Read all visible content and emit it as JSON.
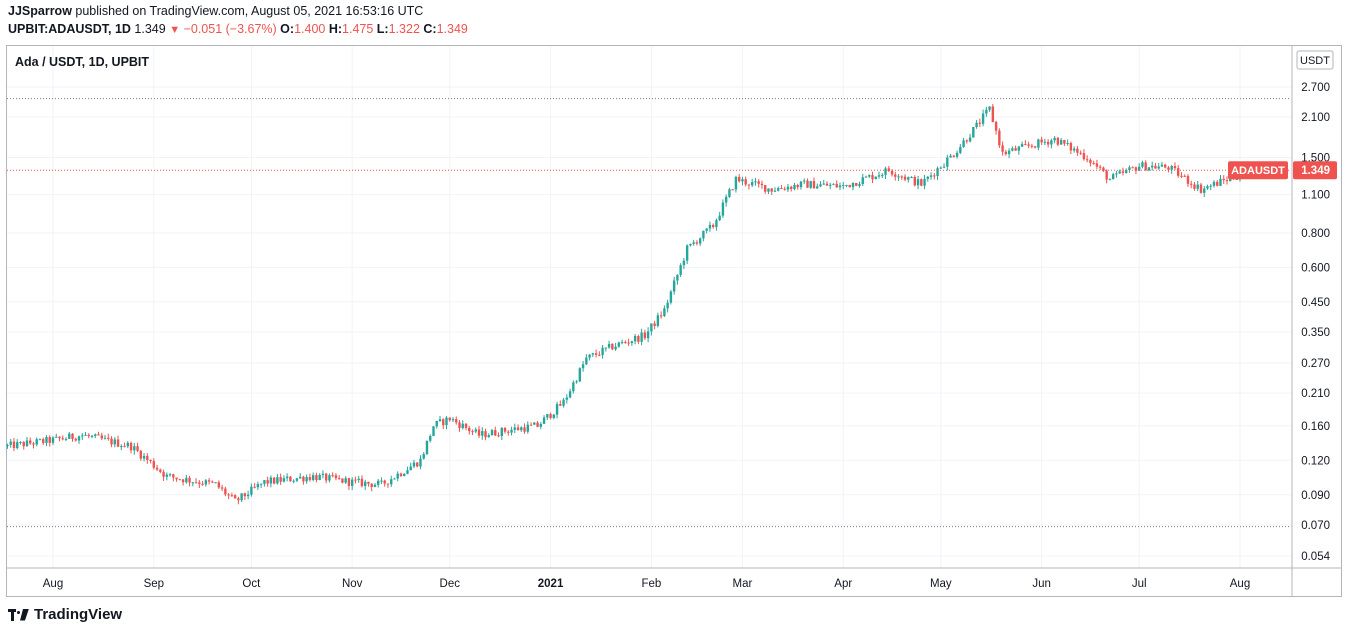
{
  "header": {
    "author": "JJSparrow",
    "published_text": "published on TradingView.com, August 05, 2021 16:53:16 UTC"
  },
  "ohlc_bar": {
    "symbol": "UPBIT:ADAUSDT, 1D",
    "last": "1.349",
    "arrow": "▼",
    "change": "−0.051 (−3.67%)",
    "o_label": "O:",
    "o_value": "1.400",
    "h_label": "H:",
    "h_value": "1.475",
    "l_label": "L:",
    "l_value": "1.322",
    "c_label": "C:",
    "c_value": "1.349"
  },
  "chart_legend": "Ada / USDT, 1D, UPBIT",
  "footer": {
    "brand": "TradingView",
    "logo_icon": "tradingview-logo-icon"
  },
  "colors": {
    "up": "#26a69a",
    "down": "#ef5350",
    "grid": "#f0f3fa",
    "axis_text": "#131722",
    "dotted_line": "#787b86"
  },
  "chart_data": {
    "type": "candlestick",
    "scale": "log",
    "currency_label": "USDT",
    "y_ticks": [
      "2.700",
      "2.100",
      "1.500",
      "1.100",
      "0.800",
      "0.600",
      "0.450",
      "0.350",
      "0.270",
      "0.210",
      "0.160",
      "0.120",
      "0.090",
      "0.070",
      "0.054"
    ],
    "x_ticks": [
      "Aug",
      "Sep",
      "Oct",
      "Nov",
      "Dec",
      "2021",
      "Feb",
      "Mar",
      "Apr",
      "May",
      "Jun",
      "Jul",
      "Aug"
    ],
    "x_tick_dates": [
      "2020-08-01",
      "2020-09-01",
      "2020-10-01",
      "2020-11-01",
      "2020-12-01",
      "2021-01-01",
      "2021-02-01",
      "2021-03-01",
      "2021-04-01",
      "2021-05-01",
      "2021-06-01",
      "2021-07-01",
      "2021-08-01"
    ],
    "x_range": [
      "2020-07-18",
      "2021-08-20"
    ],
    "y_range": [
      0.05,
      3.0
    ],
    "last_price": {
      "symbol": "ADAUSDT",
      "value": 1.349
    },
    "horizontal_levels": [
      2.45,
      0.069
    ],
    "price_path": [
      {
        "date": "2020-07-18",
        "price": 0.135
      },
      {
        "date": "2020-08-01",
        "price": 0.142
      },
      {
        "date": "2020-08-10",
        "price": 0.148
      },
      {
        "date": "2020-08-25",
        "price": 0.135
      },
      {
        "date": "2020-09-05",
        "price": 0.105
      },
      {
        "date": "2020-09-20",
        "price": 0.098
      },
      {
        "date": "2020-09-26",
        "price": 0.085
      },
      {
        "date": "2020-10-05",
        "price": 0.1
      },
      {
        "date": "2020-10-20",
        "price": 0.105
      },
      {
        "date": "2020-11-01",
        "price": 0.1
      },
      {
        "date": "2020-11-10",
        "price": 0.098
      },
      {
        "date": "2020-11-22",
        "price": 0.12
      },
      {
        "date": "2020-11-26",
        "price": 0.16
      },
      {
        "date": "2020-12-01",
        "price": 0.17
      },
      {
        "date": "2020-12-10",
        "price": 0.148
      },
      {
        "date": "2020-12-20",
        "price": 0.155
      },
      {
        "date": "2020-12-28",
        "price": 0.16
      },
      {
        "date": "2021-01-05",
        "price": 0.195
      },
      {
        "date": "2021-01-12",
        "price": 0.28
      },
      {
        "date": "2021-01-20",
        "price": 0.31
      },
      {
        "date": "2021-01-30",
        "price": 0.34
      },
      {
        "date": "2021-02-05",
        "price": 0.42
      },
      {
        "date": "2021-02-12",
        "price": 0.7
      },
      {
        "date": "2021-02-20",
        "price": 0.85
      },
      {
        "date": "2021-02-27",
        "price": 1.25
      },
      {
        "date": "2021-03-10",
        "price": 1.15
      },
      {
        "date": "2021-03-20",
        "price": 1.2
      },
      {
        "date": "2021-04-01",
        "price": 1.18
      },
      {
        "date": "2021-04-15",
        "price": 1.35
      },
      {
        "date": "2021-04-25",
        "price": 1.2
      },
      {
        "date": "2021-05-05",
        "price": 1.55
      },
      {
        "date": "2021-05-12",
        "price": 1.95
      },
      {
        "date": "2021-05-16",
        "price": 2.25
      },
      {
        "date": "2021-05-20",
        "price": 1.55
      },
      {
        "date": "2021-05-28",
        "price": 1.65
      },
      {
        "date": "2021-06-05",
        "price": 1.75
      },
      {
        "date": "2021-06-15",
        "price": 1.5
      },
      {
        "date": "2021-06-22",
        "price": 1.25
      },
      {
        "date": "2021-07-01",
        "price": 1.4
      },
      {
        "date": "2021-07-10",
        "price": 1.38
      },
      {
        "date": "2021-07-20",
        "price": 1.15
      },
      {
        "date": "2021-07-28",
        "price": 1.25
      },
      {
        "date": "2021-08-05",
        "price": 1.349
      }
    ]
  }
}
